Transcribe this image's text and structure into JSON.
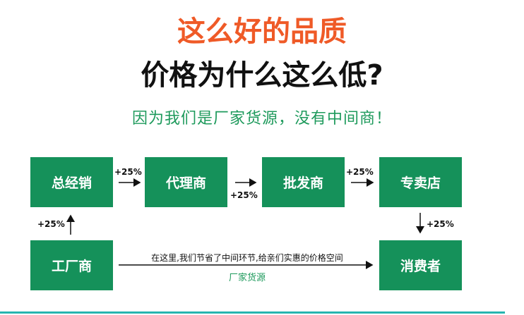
{
  "headline": "这么好的品质",
  "question": "价格为什么这么低?",
  "answer": "因为我们是厂家货源，没有中间商！",
  "colors": {
    "headline": "#ef5a27",
    "box": "#15915a",
    "answer": "#1e9a5c",
    "bottom_bar": "#27b5b0"
  },
  "nodes": {
    "general": "总经销",
    "agent": "代理商",
    "wholesale": "批发商",
    "store": "专卖店",
    "factory": "工厂商",
    "consumer": "消费者"
  },
  "markups": {
    "factory_general": "+25%",
    "general_agent": "+25%",
    "agent_wholesale": "+25%",
    "wholesale_store": "+25%",
    "store_consumer": "+25%"
  },
  "direct_note": "在这里,我们节省了中间环节,给亲们实惠的价格空间",
  "direct_label": "厂家货源"
}
